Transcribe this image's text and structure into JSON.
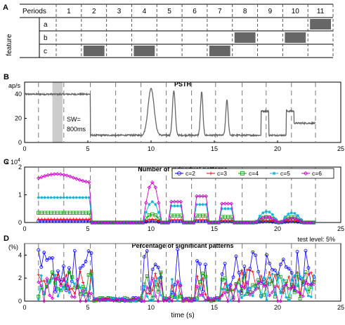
{
  "chart_data": [
    {
      "panel_label": "A",
      "type": "table",
      "header_label": "Periods",
      "row_axis_label": "feature",
      "periods": [
        "1",
        "2",
        "3",
        "4",
        "5",
        "6",
        "7",
        "8",
        "9",
        "10",
        "11"
      ],
      "features": [
        "a",
        "b",
        "c"
      ],
      "active": {
        "a": [
          11
        ],
        "b": [
          8,
          10
        ],
        "c": [
          2,
          4,
          7
        ]
      },
      "fill_color": "#666666"
    },
    {
      "panel_label": "B",
      "type": "line",
      "title": "PSTH",
      "ylabel": "ap/s",
      "xlim": [
        0,
        25
      ],
      "ylim": [
        0,
        50
      ],
      "xticks": [
        0,
        5,
        10,
        15,
        20,
        25
      ],
      "yticks": [
        0,
        20,
        40
      ],
      "annotation_lines": [
        "SW=",
        "800ms"
      ],
      "sliding_window": [
        2.2,
        3.0
      ],
      "period_boundaries": [
        1.1,
        3.1,
        5.2,
        7.2,
        9.2,
        11.2,
        13.2,
        15.1,
        17.2,
        19.1,
        21.1,
        23.0
      ],
      "baseline": 6,
      "segments": [
        {
          "x": [
            1.1,
            5.2
          ],
          "level": 40
        },
        {
          "x": [
            5.2,
            9.3
          ],
          "level": 6
        },
        {
          "x": [
            9.3,
            10.8
          ],
          "peak": 45,
          "center": 10.0
        },
        {
          "x": [
            11.5,
            12.2
          ],
          "peak": 43,
          "center": 11.8
        },
        {
          "x": [
            13.7,
            14.3
          ],
          "peak": 42,
          "center": 14.0
        },
        {
          "x": [
            15.7,
            16.3
          ],
          "peak": 35,
          "center": 16.0
        },
        {
          "x": [
            18.7,
            19.3
          ],
          "level": 26
        },
        {
          "x": [
            20.7,
            21.3
          ],
          "level": 26
        },
        {
          "x": [
            21.3,
            23.0
          ],
          "level": 16
        }
      ],
      "color": "#666666"
    },
    {
      "panel_label": "C",
      "type": "line",
      "title": "Number of individual patterns",
      "ylabel": "x 10^4",
      "ylabel_base": "x 10",
      "ylabel_exp": "4",
      "xlim": [
        0,
        25
      ],
      "ylim": [
        0,
        2
      ],
      "xticks": [
        0,
        5,
        10,
        15,
        20,
        25
      ],
      "yticks": [
        0,
        1,
        2
      ],
      "series": [
        {
          "name": "c=2",
          "color": "#0000ff",
          "marker": "circle"
        },
        {
          "name": "c=3",
          "color": "#ff0000",
          "marker": "plus"
        },
        {
          "name": "c=4",
          "color": "#00a000",
          "marker": "square"
        },
        {
          "name": "c=5",
          "color": "#00b3d8",
          "marker": "star"
        },
        {
          "name": "c=6",
          "color": "#d000d0",
          "marker": "diamond"
        }
      ],
      "levels": {
        "first_block": [
          0.05,
          0.12,
          0.35,
          0.9,
          1.6
        ],
        "block_10": [
          0.05,
          0.12,
          0.3,
          0.75,
          1.45
        ],
        "block_12": [
          0.05,
          0.1,
          0.25,
          0.6,
          0.75
        ],
        "block_14": [
          0.05,
          0.1,
          0.25,
          0.65,
          0.95
        ],
        "block_16": [
          0.04,
          0.08,
          0.2,
          0.5,
          0.68
        ],
        "bump_19": [
          0.04,
          0.08,
          0.2,
          0.4,
          0.2
        ],
        "bump_21": [
          0.04,
          0.08,
          0.2,
          0.35,
          0.15
        ]
      }
    },
    {
      "panel_label": "D",
      "type": "line",
      "title": "Percentage of significant patterns",
      "ylabel": "(%)",
      "xlabel": "time (s)",
      "xlim": [
        0,
        25
      ],
      "ylim": [
        0,
        5
      ],
      "xticks": [
        0,
        5,
        10,
        15,
        20,
        25
      ],
      "yticks": [
        0,
        2,
        4
      ],
      "threshold": 5,
      "threshold_label": "test level: 5%"
    }
  ]
}
